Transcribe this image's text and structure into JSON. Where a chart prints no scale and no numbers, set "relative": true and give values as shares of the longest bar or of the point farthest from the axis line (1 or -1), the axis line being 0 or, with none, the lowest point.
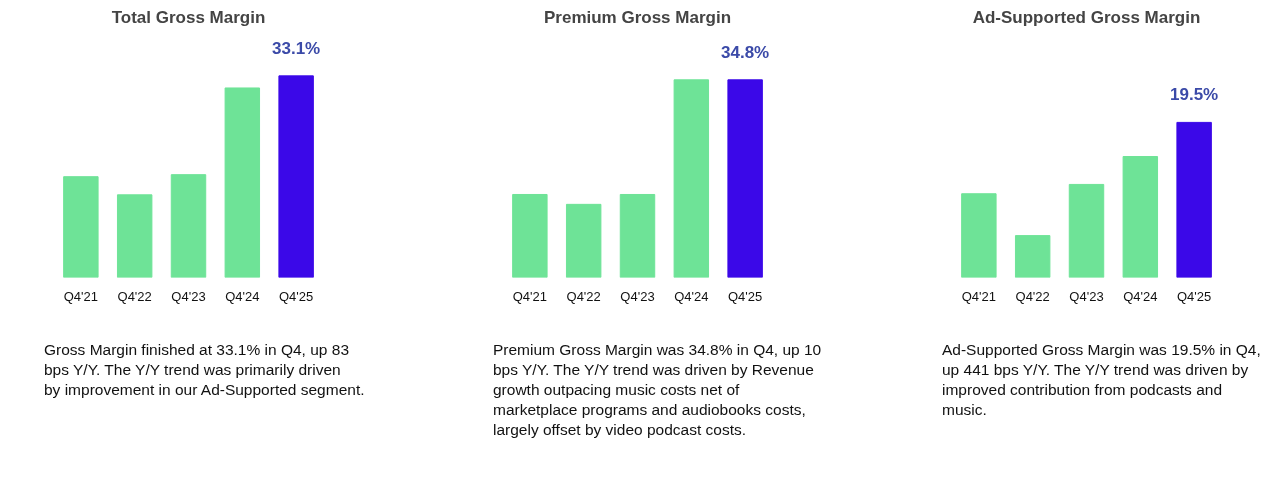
{
  "chart_data": [
    {
      "type": "bar",
      "title": "Total Gross Margin",
      "relative": true,
      "categories": [
        "Q4'21",
        "Q4'22",
        "Q4'23",
        "Q4'24",
        "Q4'25"
      ],
      "values": [
        0.5,
        0.41,
        0.51,
        0.94,
        1
      ],
      "colors": [
        "#6ee397",
        "#6ee397",
        "#6ee397",
        "#6ee397",
        "#3b08e8"
      ],
      "grid": false,
      "annotations": [
        {
          "text": "33.1%",
          "x": "Q4'25",
          "y": 1
        },
        "Gross Margin finished at 33.1% in Q4, up 83 bps Y/Y. The Y/Y trend was primarily driven by improvement in our Ad-Supported segment."
      ]
    },
    {
      "type": "bar",
      "title": "Premium Gross Margin",
      "relative": true,
      "categories": [
        "Q4'21",
        "Q4'22",
        "Q4'23",
        "Q4'24",
        "Q4'25"
      ],
      "values": [
        0.42,
        0.37,
        0.42,
        1.0,
        1
      ],
      "colors": [
        "#6ee397",
        "#6ee397",
        "#6ee397",
        "#6ee397",
        "#3b08e8"
      ],
      "grid": false,
      "annotations": [
        {
          "text": "34.8%",
          "x": "Q4'25",
          "y": 1
        },
        "Premium Gross Margin was 34.8% in Q4, up 10 bps Y/Y. The Y/Y trend was driven by Revenue growth outpacing music costs net of marketplace programs and audiobooks costs, largely offset by video podcast costs."
      ]
    },
    {
      "type": "bar",
      "title": "Ad-Supported Gross Margin",
      "relative": true,
      "categories": [
        "Q4'21",
        "Q4'22",
        "Q4'23",
        "Q4'24",
        "Q4'25"
      ],
      "values": [
        0.54,
        0.27,
        0.6,
        0.78,
        1
      ],
      "colors": [
        "#6ee397",
        "#6ee397",
        "#6ee397",
        "#6ee397",
        "#3b08e8"
      ],
      "grid": false,
      "annotations": [
        {
          "text": "19.5%",
          "x": "Q4'25",
          "y": 1
        },
        "Ad-Supported Gross Margin was 19.5% in Q4, up 441 bps Y/Y. The Y/Y trend was driven by improved contribution from podcasts and music."
      ]
    }
  ]
}
